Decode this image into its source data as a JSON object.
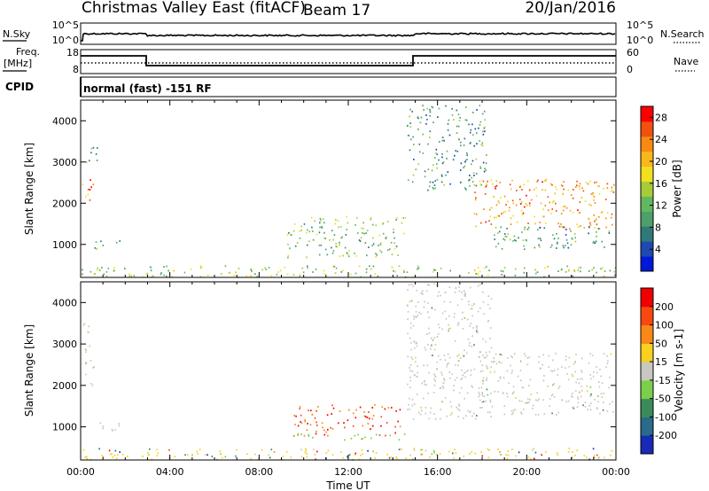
{
  "header": {
    "title": "Christmas Valley East (fitACF)",
    "beam": "Beam 17",
    "date": "20/Jan/2016"
  },
  "strips": {
    "noise": {
      "left_label": "N.Sky",
      "left_top_tick": "10^5",
      "left_bottom_tick": "10^0",
      "right_top_tick": "10^5",
      "right_bottom_tick": "10^0",
      "right_label": "N.Search",
      "legend_line": "dotted"
    },
    "freq": {
      "left_label_1": "Freq.",
      "left_label_2": "[MHz]",
      "left_top_tick": "18",
      "left_bottom_tick": "8",
      "right_top_tick": "60",
      "right_bottom_tick": "0",
      "right_label": "Nave",
      "legend_line": "dotted"
    },
    "cpid": {
      "left_label": "CPID",
      "text": "normal (fast) -151 RF"
    }
  },
  "chart_data": [
    {
      "type": "heatmap",
      "name": "power",
      "ylabel": "Slant Range [km]",
      "xlabel": "",
      "ylim": [
        200,
        4500
      ],
      "xlim_hours": [
        0,
        24
      ],
      "y_ticks": [
        "1000",
        "2000",
        "3000",
        "4000"
      ],
      "colorbar": {
        "label": "Power [dB]",
        "ticks": [
          "4",
          "8",
          "12",
          "16",
          "20",
          "24",
          "28"
        ],
        "range": [
          0,
          30
        ],
        "colors": [
          "#0018d8",
          "#1f48b0",
          "#2f7a78",
          "#4ea06a",
          "#62b85e",
          "#a7cc3a",
          "#f0e020",
          "#f8b81a",
          "#f88a14",
          "#f05010",
          "#ff0000"
        ]
      },
      "regions": [
        {
          "t": [
            0.05,
            0.55
          ],
          "r": [
            2000,
            2700
          ],
          "v": 24
        },
        {
          "t": [
            0.2,
            0.8
          ],
          "r": [
            3000,
            3550
          ],
          "v": 10
        },
        {
          "t": [
            0.6,
            1.8
          ],
          "r": [
            900,
            1150
          ],
          "v": 11
        },
        {
          "t": [
            9.2,
            14.6
          ],
          "r": [
            700,
            1700
          ],
          "v": 12
        },
        {
          "t": [
            14.6,
            18.2
          ],
          "r": [
            2300,
            4400
          ],
          "v": 9
        },
        {
          "t": [
            17.6,
            23.9
          ],
          "r": [
            1400,
            2600
          ],
          "v": 23
        },
        {
          "t": [
            18.5,
            23.9
          ],
          "r": [
            900,
            1450
          ],
          "v": 9
        },
        {
          "t": [
            0,
            24
          ],
          "r": [
            220,
            500
          ],
          "v": 14
        }
      ]
    },
    {
      "type": "heatmap",
      "name": "velocity",
      "ylabel": "Slant Range [km]",
      "xlabel": "Time UT",
      "ylim": [
        200,
        4500
      ],
      "xlim_hours": [
        0,
        24
      ],
      "y_ticks": [
        "1000",
        "2000",
        "3000",
        "4000"
      ],
      "x_ticks": [
        "00:00",
        "04:00",
        "08:00",
        "12:00",
        "16:00",
        "20:00",
        "00:00"
      ],
      "colorbar": {
        "label": "Velocity [m s-1]",
        "ticks": [
          "200",
          "100",
          "50",
          "15",
          "-15",
          "-50",
          "-100",
          "-200"
        ],
        "colors": [
          "#1a2ab8",
          "#2a6a8a",
          "#3a8a5a",
          "#7ad04a",
          "#c8c8c0",
          "#f8d020",
          "#f88818",
          "#f84810",
          "#f00000"
        ]
      },
      "regions": [
        {
          "t": [
            0.1,
            0.6
          ],
          "r": [
            2000,
            3550
          ],
          "cls": "grey"
        },
        {
          "t": [
            0.8,
            1.9
          ],
          "r": [
            900,
            1150
          ],
          "cls": "grey"
        },
        {
          "t": [
            9.5,
            14.5
          ],
          "r": [
            800,
            1550
          ],
          "cls": "red"
        },
        {
          "t": [
            9.5,
            14.5
          ],
          "r": [
            700,
            850
          ],
          "cls": "green"
        },
        {
          "t": [
            14.6,
            18.4
          ],
          "r": [
            1200,
            4500
          ],
          "cls": "grey"
        },
        {
          "t": [
            17.8,
            23.9
          ],
          "r": [
            1300,
            2800
          ],
          "cls": "grey"
        },
        {
          "t": [
            0,
            24
          ],
          "r": [
            220,
            500
          ],
          "cls": "yellow"
        }
      ]
    }
  ]
}
